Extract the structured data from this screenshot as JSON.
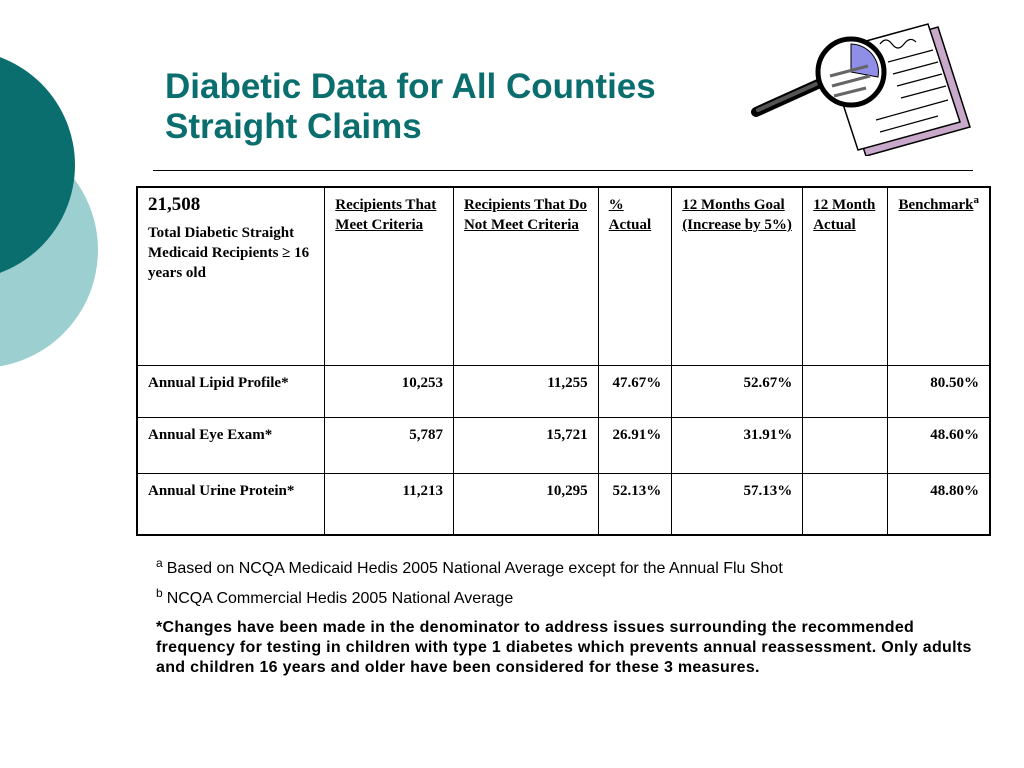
{
  "title": {
    "line1": "Diabetic Data for All Counties",
    "line2": "Straight Claims"
  },
  "icons": {
    "clipart": "magnifier-over-chart-document-icon"
  },
  "colors": {
    "title": "#0b6e6e",
    "decor_dark": "#0b6e6e",
    "decor_light": "#9ccfd0"
  },
  "table": {
    "corner": {
      "count": "21,508",
      "label": "Total Diabetic Straight Medicaid Recipients ≥ 16 years old"
    },
    "headers": [
      "Recipients That Meet Criteria",
      "Recipients That Do Not Meet Criteria",
      "% Actual",
      "12 Months Goal (Increase by 5%)",
      "12 Month Actual",
      "Benchmark"
    ],
    "benchmark_sup": "a",
    "rows": [
      {
        "label": "Annual Lipid Profile*",
        "meet": "10,253",
        "not_meet": "11,255",
        "actual": "47.67%",
        "goal": "52.67%",
        "month_actual": "",
        "benchmark": "80.50%"
      },
      {
        "label": "Annual Eye Exam*",
        "meet": "5,787",
        "not_meet": "15,721",
        "actual": "26.91%",
        "goal": "31.91%",
        "month_actual": "",
        "benchmark": "48.60%"
      },
      {
        "label": "Annual Urine Protein*",
        "meet": "11,213",
        "not_meet": "10,295",
        "actual": "52.13%",
        "goal": "57.13%",
        "month_actual": "",
        "benchmark": "48.80%"
      }
    ]
  },
  "footnotes": {
    "a_marker": "a",
    "a_text": "Based on NCQA Medicaid Hedis 2005 National Average except for the Annual Flu Shot",
    "b_marker": "b",
    "b_text": "NCQA Commercial Hedis 2005 National Average",
    "star_marker": "*",
    "star_text": "Changes have been made in the denominator to address issues surrounding the recommended frequency for testing in children with type 1 diabetes which prevents annual reassessment.  Only adults and children 16 years and older have been considered for these 3 measures."
  }
}
